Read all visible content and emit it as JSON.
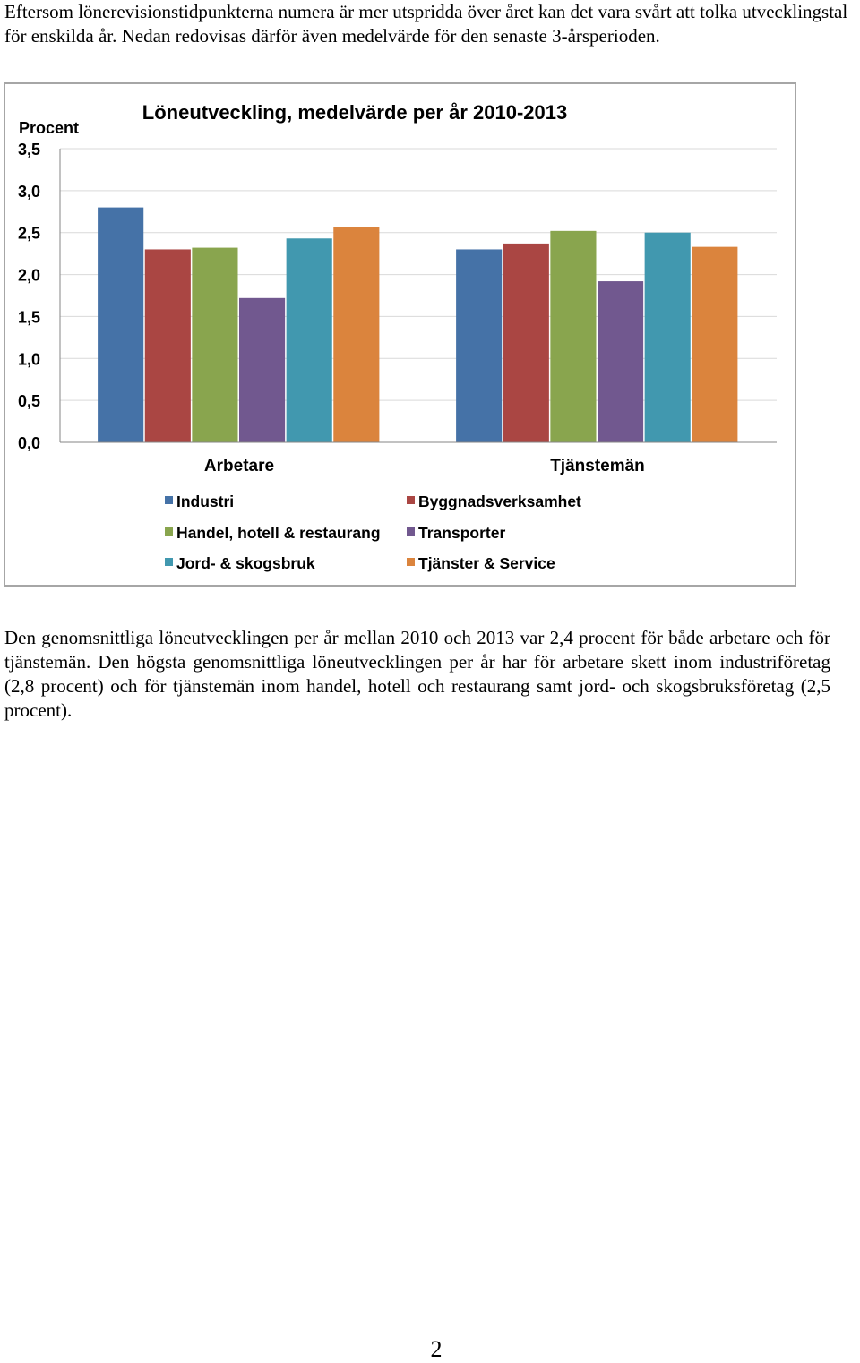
{
  "document": {
    "intro_text": "Eftersom lönerevisionstidpunkterna numera är mer utspridda över året kan det vara svårt att tolka utvecklingstal för enskilda år. Nedan redovisas därför även medelvärde för den senaste 3-årsperioden.",
    "body_text": "Den genomsnittliga löneutvecklingen per år mellan 2010 och 2013 var 2,4 procent för både arbetare och för tjänstemän. Den högsta genomsnittliga löneutvecklingen per år har för arbetare skett inom industriföretag (2,8 procent) och för tjänstemän inom handel, hotell och restaurang samt jord- och skogsbruksföretag (2,5 procent).",
    "page_number": "2"
  },
  "chart_data": {
    "type": "bar",
    "title": "Löneutveckling, medelvärde per år 2010-2013",
    "ylabel": "Procent",
    "xlabel": "",
    "categories": [
      "Arbetare",
      "Tjänstemän"
    ],
    "ylim": [
      0,
      3.5
    ],
    "yticks": [
      "0,0",
      "0,5",
      "1,0",
      "1,5",
      "2,0",
      "2,5",
      "3,0",
      "3,5"
    ],
    "grid": true,
    "legend_position": "bottom",
    "series": [
      {
        "name": "Industri",
        "color": "#4572a7",
        "values": [
          2.8,
          2.3
        ]
      },
      {
        "name": "Byggnadsverksamhet",
        "color": "#aa4643",
        "values": [
          2.3,
          2.37
        ]
      },
      {
        "name": "Handel, hotell & restaurang",
        "color": "#89a54e",
        "values": [
          2.32,
          2.52
        ]
      },
      {
        "name": "Transporter",
        "color": "#71588f",
        "values": [
          1.72,
          1.92
        ]
      },
      {
        "name": "Jord- & skogsbruk",
        "color": "#4198af",
        "values": [
          2.43,
          2.5
        ]
      },
      {
        "name": "Tjänster & Service",
        "color": "#db843d",
        "values": [
          2.57,
          2.33
        ]
      }
    ]
  }
}
